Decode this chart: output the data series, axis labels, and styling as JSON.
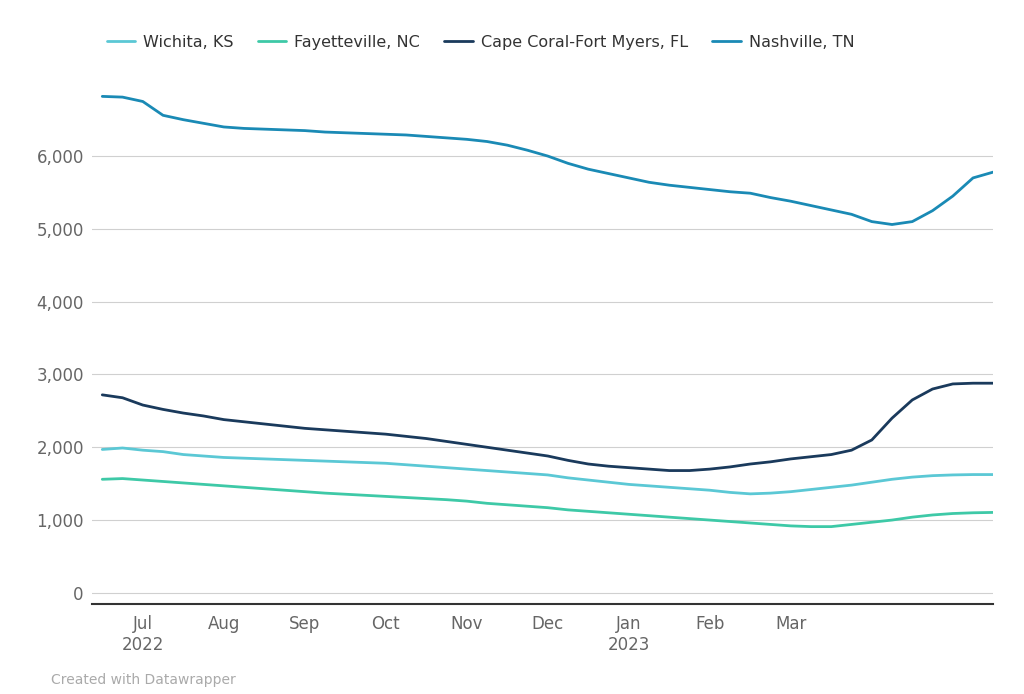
{
  "series": {
    "Wichita, KS": {
      "color": "#5bc8d5",
      "values": [
        1970,
        1990,
        1960,
        1940,
        1900,
        1880,
        1860,
        1850,
        1840,
        1830,
        1820,
        1810,
        1800,
        1790,
        1780,
        1760,
        1740,
        1720,
        1700,
        1680,
        1660,
        1640,
        1620,
        1580,
        1550,
        1520,
        1490,
        1470,
        1450,
        1430,
        1410,
        1380,
        1360,
        1370,
        1390,
        1420,
        1450,
        1480,
        1520,
        1560,
        1590,
        1610,
        1620,
        1625,
        1625
      ]
    },
    "Fayetteville, NC": {
      "color": "#3ec9a7",
      "values": [
        1560,
        1570,
        1550,
        1530,
        1510,
        1490,
        1470,
        1450,
        1430,
        1410,
        1390,
        1370,
        1355,
        1340,
        1325,
        1310,
        1295,
        1280,
        1260,
        1230,
        1210,
        1190,
        1170,
        1140,
        1120,
        1100,
        1080,
        1060,
        1040,
        1020,
        1000,
        980,
        960,
        940,
        920,
        910,
        910,
        940,
        970,
        1000,
        1040,
        1070,
        1090,
        1100,
        1105
      ]
    },
    "Cape Coral-Fort Myers, FL": {
      "color": "#1a3a5c",
      "values": [
        2720,
        2680,
        2580,
        2520,
        2470,
        2430,
        2380,
        2350,
        2320,
        2290,
        2260,
        2240,
        2220,
        2200,
        2180,
        2150,
        2120,
        2080,
        2040,
        2000,
        1960,
        1920,
        1880,
        1820,
        1770,
        1740,
        1720,
        1700,
        1680,
        1680,
        1700,
        1730,
        1770,
        1800,
        1840,
        1870,
        1900,
        1960,
        2100,
        2400,
        2650,
        2800,
        2870,
        2880,
        2880
      ]
    },
    "Nashville, TN": {
      "color": "#1a8ab5",
      "values": [
        6820,
        6810,
        6750,
        6560,
        6500,
        6450,
        6400,
        6380,
        6370,
        6360,
        6350,
        6330,
        6320,
        6310,
        6300,
        6290,
        6270,
        6250,
        6230,
        6200,
        6150,
        6080,
        6000,
        5900,
        5820,
        5760,
        5700,
        5640,
        5600,
        5570,
        5540,
        5510,
        5490,
        5430,
        5380,
        5320,
        5260,
        5200,
        5100,
        5060,
        5100,
        5250,
        5450,
        5700,
        5780
      ]
    }
  },
  "n_points": 45,
  "tick_positions": [
    2,
    6,
    10,
    14,
    18,
    22,
    26,
    30,
    34,
    38,
    42
  ],
  "tick_labels": [
    "Jul\n2022",
    "Aug",
    "Sep",
    "Oct",
    "Nov",
    "Dec",
    "Jan\n2023",
    "Feb",
    "Mar",
    "",
    ""
  ],
  "tick_positions_shown": [
    2,
    6,
    10,
    14,
    18,
    22,
    26,
    30,
    34,
    38,
    42
  ],
  "tick_labels_shown": [
    "Jul\n2022",
    "Aug",
    "Sep",
    "Oct",
    "Nov",
    "Dec",
    "Jan\n2023",
    "Feb",
    "Mar",
    "",
    ""
  ],
  "yticks": [
    0,
    1000,
    2000,
    3000,
    4000,
    5000,
    6000
  ],
  "ylim": [
    -150,
    7000
  ],
  "xlim_left": -1,
  "xlim_right": 45,
  "background_color": "#ffffff",
  "grid_color": "#d0d0d0",
  "legend_order": [
    "Wichita, KS",
    "Fayetteville, NC",
    "Cape Coral-Fort Myers, FL",
    "Nashville, TN"
  ],
  "credit": "Created with Datawrapper",
  "line_width": 2.0
}
